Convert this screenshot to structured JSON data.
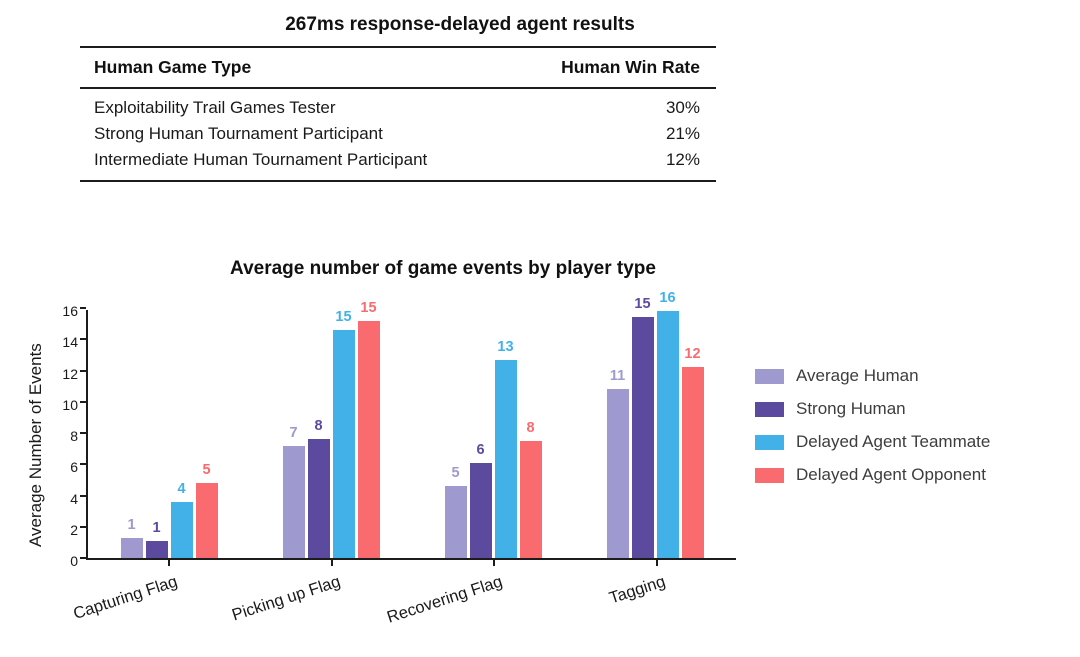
{
  "background_color": "#ffffff",
  "chart_data": [
    {
      "type": "table",
      "title": "267ms response-delayed agent results",
      "columns": [
        "Human Game Type",
        "Human Win Rate"
      ],
      "rows": [
        [
          "Exploitability Trail Games Tester",
          "30%"
        ],
        [
          "Strong Human Tournament Participant",
          "21%"
        ],
        [
          "Intermediate Human Tournament Participant",
          "12%"
        ]
      ]
    },
    {
      "type": "bar",
      "title": "Average number of game events by player type",
      "xlabel": "",
      "ylabel": "Average Number of Events",
      "ylim": [
        0,
        16
      ],
      "yticks": [
        0,
        2,
        4,
        6,
        8,
        10,
        12,
        14,
        16
      ],
      "grid": false,
      "legend_position": "right",
      "categories": [
        "Capturing Flag",
        "Picking up Flag",
        "Recovering Flag",
        "Tagging"
      ],
      "series": [
        {
          "name": "Average Human",
          "color": "#9e99ce",
          "values": [
            1.3,
            7.2,
            4.6,
            10.8
          ],
          "labels": [
            "1",
            "7",
            "5",
            "11"
          ]
        },
        {
          "name": "Strong Human",
          "color": "#5c4a9e",
          "values": [
            1.1,
            7.6,
            6.1,
            15.4
          ],
          "labels": [
            "1",
            "8",
            "6",
            "15"
          ]
        },
        {
          "name": "Delayed Agent Teammate",
          "color": "#41b1e8",
          "values": [
            3.6,
            14.6,
            12.7,
            15.8
          ],
          "labels": [
            "4",
            "15",
            "13",
            "16"
          ]
        },
        {
          "name": "Delayed Agent Opponent",
          "color": "#f96b6e",
          "values": [
            4.8,
            15.2,
            7.5,
            12.2
          ],
          "labels": [
            "5",
            "15",
            "8",
            "12"
          ]
        }
      ]
    }
  ]
}
